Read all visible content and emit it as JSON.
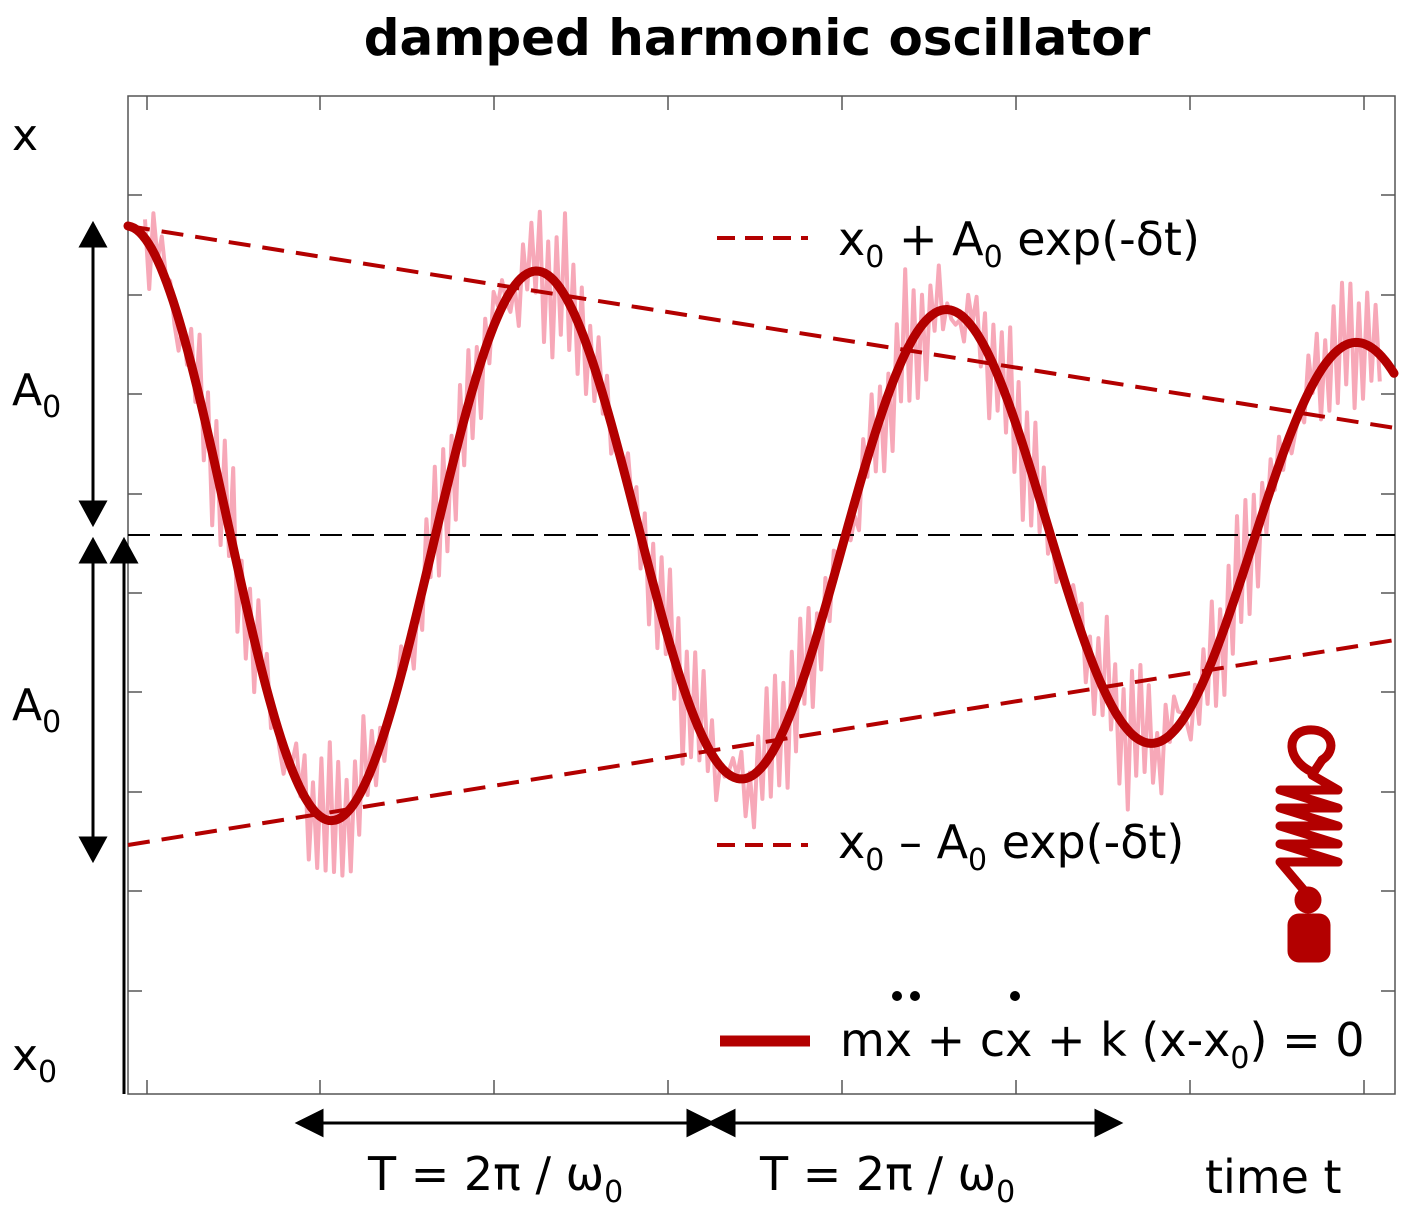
{
  "title": "damped harmonic oscillator",
  "labels": {
    "y_axis": "x",
    "x_axis": "time t",
    "amplitude_upper_main": "A",
    "amplitude_upper_sub": "0",
    "amplitude_lower_main": "A",
    "amplitude_lower_sub": "0",
    "equilibrium_main": "x",
    "equilibrium_sub": "0",
    "period_1_left": "T = 2π / ω",
    "period_1_sub": "0",
    "period_2_left": "T = 2π / ω",
    "period_2_sub": "0"
  },
  "legend": {
    "upper_envelope": {
      "p1": "x",
      "s1": "0",
      "p2": " + A",
      "s2": "0",
      "p3": " exp(-δt)"
    },
    "lower_envelope": {
      "p1": "x",
      "s1": "0",
      "p2": " – A",
      "s2": "0",
      "p3": " exp(-δt)"
    },
    "equation": {
      "p1": "m",
      "p2": "x",
      "p3": " + c",
      "p4": "x",
      "p5": " + k (x-x",
      "s1": "0",
      "p6": ") = 0"
    }
  },
  "colors": {
    "curve": "#b30000",
    "noise": "#f7a8b8",
    "axis": "#000000"
  },
  "icons": {
    "spring_mass": "spring-mass-icon"
  }
}
